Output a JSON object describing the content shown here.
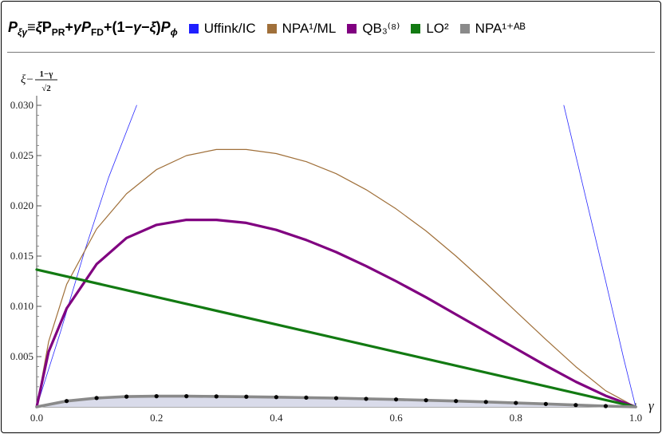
{
  "header": {
    "title": "Pξγ≡ξPPR+γPFD+(1−γ−ξ)Pϕ"
  },
  "legend": [
    {
      "label": "Uffink/IC",
      "color": "#1f1fff"
    },
    {
      "label": "NPA¹/ML",
      "color": "#a0703a"
    },
    {
      "label": "QB₃⁽⁸⁾",
      "color": "#800080"
    },
    {
      "label": "LO²",
      "color": "#127a12"
    },
    {
      "label": "NPA¹⁺ᴬᴮ",
      "color": "#8a8a8a"
    }
  ],
  "chart_data": {
    "type": "line",
    "ylabel": "ξ − (1−γ)/√2",
    "xlabel": "γ",
    "xlim": [
      0,
      1
    ],
    "ylim": [
      0,
      0.03
    ],
    "x_ticks": [
      "0.0",
      "0.2",
      "0.4",
      "0.6",
      "0.8",
      "1.0"
    ],
    "y_ticks": [
      "0.005",
      "0.010",
      "0.015",
      "0.020",
      "0.025",
      "0.030"
    ],
    "series": [
      {
        "name": "Uffink/IC",
        "color": "#2a2aff",
        "width": 0.8,
        "x": [
          0,
          0.04,
          0.08,
          0.12,
          0.167
        ],
        "y": [
          0,
          0.0075,
          0.0155,
          0.0228,
          0.03
        ]
      },
      {
        "name": "Uffink/IC",
        "color": "#2a2aff",
        "width": 0.8,
        "x": [
          0.88,
          0.92,
          0.95,
          0.98,
          1.0
        ],
        "y": [
          0.03,
          0.02,
          0.0125,
          0.0048,
          0
        ]
      },
      {
        "name": "NPA¹/ML",
        "color": "#a0703a",
        "width": 1.2,
        "x": [
          0,
          0.02,
          0.05,
          0.1,
          0.15,
          0.2,
          0.25,
          0.3,
          0.35,
          0.4,
          0.45,
          0.5,
          0.55,
          0.6,
          0.65,
          0.7,
          0.75,
          0.8,
          0.85,
          0.9,
          0.95,
          1.0
        ],
        "y": [
          0,
          0.0065,
          0.0122,
          0.0177,
          0.0212,
          0.0236,
          0.025,
          0.0256,
          0.0256,
          0.0252,
          0.0244,
          0.0232,
          0.0216,
          0.0197,
          0.0175,
          0.015,
          0.0123,
          0.0095,
          0.0067,
          0.004,
          0.0016,
          0
        ]
      },
      {
        "name": "QB₃⁽⁸⁾",
        "color": "#800080",
        "width": 3.2,
        "x": [
          0,
          0.02,
          0.05,
          0.1,
          0.15,
          0.2,
          0.25,
          0.3,
          0.35,
          0.4,
          0.45,
          0.5,
          0.55,
          0.6,
          0.65,
          0.7,
          0.75,
          0.8,
          0.85,
          0.9,
          0.95,
          1.0
        ],
        "y": [
          0,
          0.0055,
          0.0098,
          0.0142,
          0.0168,
          0.0181,
          0.0186,
          0.0186,
          0.0183,
          0.0176,
          0.0166,
          0.0154,
          0.014,
          0.0125,
          0.0109,
          0.0092,
          0.0075,
          0.0058,
          0.0041,
          0.0025,
          0.0011,
          0
        ]
      },
      {
        "name": "LO²",
        "color": "#127a12",
        "width": 3.2,
        "x": [
          0,
          1.0
        ],
        "y": [
          0.01366,
          0
        ]
      },
      {
        "name": "NPA¹⁺ᴬᴮ",
        "color": "#8a8a8a",
        "width": 3.6,
        "fill": "#d9dbea",
        "x": [
          0,
          0.05,
          0.1,
          0.15,
          0.2,
          0.25,
          0.3,
          0.35,
          0.4,
          0.45,
          0.5,
          0.55,
          0.6,
          0.65,
          0.7,
          0.75,
          0.8,
          0.85,
          0.9,
          0.95,
          1.0
        ],
        "y": [
          0,
          0.00058,
          0.00088,
          0.00102,
          0.00106,
          0.00106,
          0.00104,
          0.00101,
          0.00097,
          0.00092,
          0.00087,
          0.0008,
          0.00074,
          0.00066,
          0.00058,
          0.00049,
          0.00039,
          0.00029,
          0.00018,
          8e-05,
          0
        ]
      },
      {
        "name": "NPA¹⁺ᴬᴮ",
        "color": "#000000",
        "marker": "dot",
        "x": [
          0.05,
          0.1,
          0.15,
          0.2,
          0.25,
          0.3,
          0.35,
          0.4,
          0.45,
          0.5,
          0.55,
          0.6,
          0.65,
          0.7,
          0.75,
          0.8,
          0.85,
          0.9,
          0.95
        ],
        "y": [
          0.00058,
          0.00088,
          0.00102,
          0.00106,
          0.00106,
          0.00104,
          0.00101,
          0.00097,
          0.00092,
          0.00087,
          0.0008,
          0.00074,
          0.00066,
          0.00058,
          0.00049,
          0.00039,
          0.00029,
          0.00018,
          8e-05
        ]
      }
    ]
  }
}
